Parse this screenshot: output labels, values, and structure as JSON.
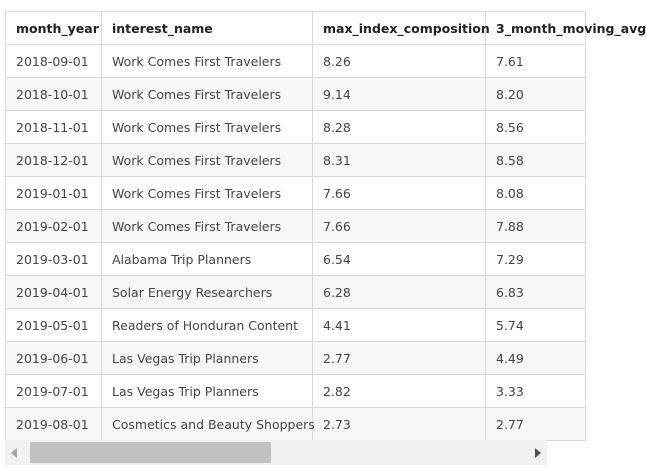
{
  "table": {
    "columns": [
      "month_year",
      "interest_name",
      "max_index_composition",
      "3_month_moving_avg"
    ],
    "rows": [
      [
        "2018-09-01",
        "Work Comes First Travelers",
        "8.26",
        "7.61"
      ],
      [
        "2018-10-01",
        "Work Comes First Travelers",
        "9.14",
        "8.20"
      ],
      [
        "2018-11-01",
        "Work Comes First Travelers",
        "8.28",
        "8.56"
      ],
      [
        "2018-12-01",
        "Work Comes First Travelers",
        "8.31",
        "8.58"
      ],
      [
        "2019-01-01",
        "Work Comes First Travelers",
        "7.66",
        "8.08"
      ],
      [
        "2019-02-01",
        "Work Comes First Travelers",
        "7.66",
        "7.88"
      ],
      [
        "2019-03-01",
        "Alabama Trip Planners",
        "6.54",
        "7.29"
      ],
      [
        "2019-04-01",
        "Solar Energy Researchers",
        "6.28",
        "6.83"
      ],
      [
        "2019-05-01",
        "Readers of Honduran Content",
        "4.41",
        "5.74"
      ],
      [
        "2019-06-01",
        "Las Vegas Trip Planners",
        "2.77",
        "4.49"
      ],
      [
        "2019-07-01",
        "Las Vegas Trip Planners",
        "2.82",
        "3.33"
      ],
      [
        "2019-08-01",
        "Cosmetics and Beauty Shoppers",
        "2.73",
        "2.77"
      ]
    ]
  },
  "scrollbar": {
    "left_arrow_icon": "chevron-left-icon",
    "right_arrow_icon": "chevron-right-icon",
    "thumb_position_fraction": 0
  },
  "colors": {
    "border": "#d9d9d9",
    "alt_row": "#f7f7f7",
    "scroll_track": "#f1f1f1",
    "scroll_thumb": "#c1c1c1"
  }
}
